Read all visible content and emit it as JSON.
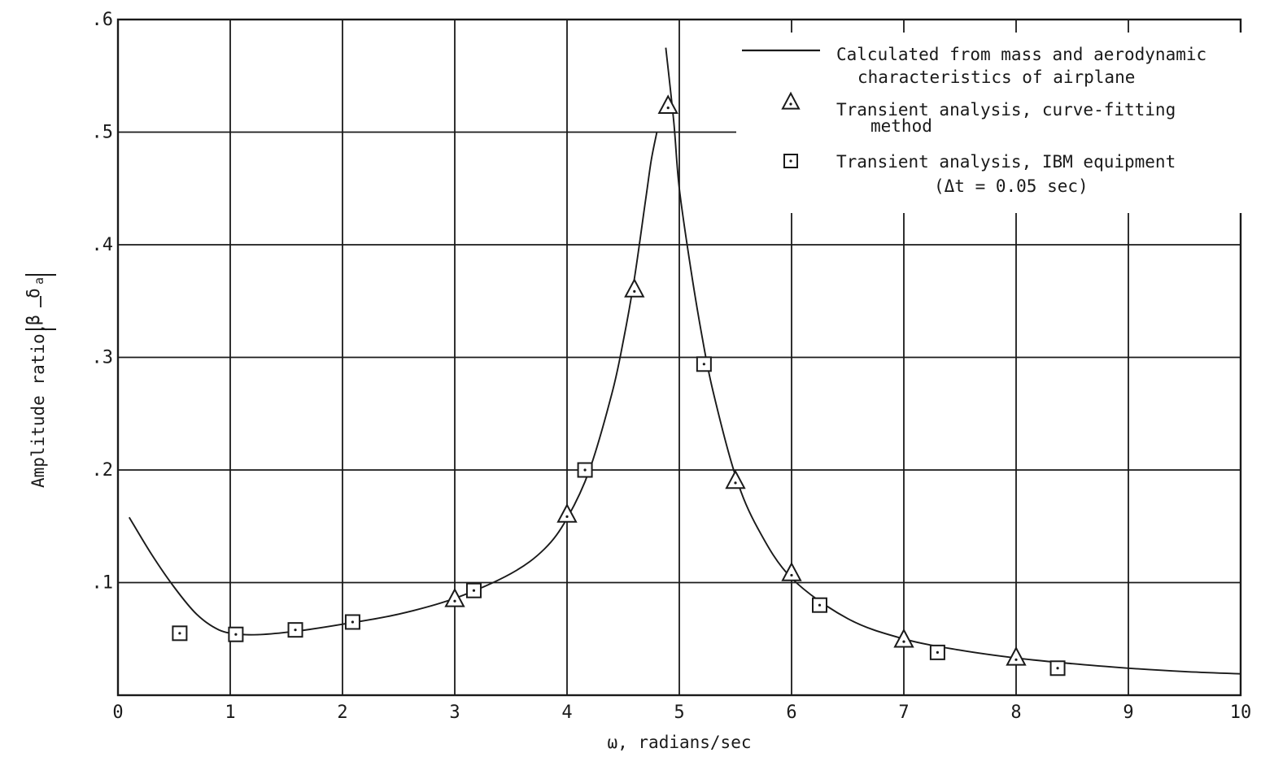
{
  "chart_data": {
    "type": "line",
    "title": "",
    "xlabel": "ω, radians/sec",
    "ylabel": "Amplitude ratio,",
    "ylabel_ratio": {
      "numerator": "β",
      "denominator": "δ",
      "denominator_subscript": "a"
    },
    "xlim": [
      0,
      10
    ],
    "ylim": [
      0,
      0.6
    ],
    "x_ticks": [
      "0",
      "1",
      "2",
      "3",
      "4",
      "5",
      "6",
      "7",
      "8",
      "9",
      "10"
    ],
    "y_ticks": [
      ".1",
      ".2",
      ".3",
      ".4",
      ".5",
      ".6"
    ],
    "grid": true,
    "legend_position": "top-right",
    "series": [
      {
        "name": "Calculated from mass and aerodynamic characteristics of airplane",
        "marker": "line",
        "x": [
          0.1,
          0.3,
          0.5,
          0.7,
          0.9,
          1.1,
          1.3,
          1.6,
          2.0,
          2.5,
          3.0,
          3.5,
          3.8,
          4.0,
          4.2,
          4.4,
          4.5,
          4.6,
          4.7,
          4.75,
          4.8
        ],
        "y": [
          0.158,
          0.125,
          0.096,
          0.072,
          0.058,
          0.054,
          0.054,
          0.057,
          0.063,
          0.072,
          0.086,
          0.108,
          0.13,
          0.157,
          0.2,
          0.268,
          0.314,
          0.37,
          0.44,
          0.475,
          0.5
        ]
      },
      {
        "name": "",
        "marker": "line",
        "x": [
          4.88,
          4.95,
          5.0,
          5.1,
          5.2,
          5.3,
          5.5,
          5.7,
          6.0,
          6.5,
          7.0,
          7.5,
          8.0,
          8.5,
          9.0,
          9.5,
          10.0
        ],
        "y": [
          0.575,
          0.51,
          0.45,
          0.38,
          0.32,
          0.27,
          0.195,
          0.148,
          0.104,
          0.068,
          0.05,
          0.04,
          0.033,
          0.028,
          0.024,
          0.021,
          0.019
        ]
      },
      {
        "name": "Transient analysis, curve-fitting method",
        "marker": "triangle",
        "x": [
          3.0,
          4.0,
          4.6,
          4.9,
          5.5,
          6.0,
          7.0,
          8.0
        ],
        "y": [
          0.085,
          0.16,
          0.36,
          0.523,
          0.19,
          0.108,
          0.049,
          0.033
        ]
      },
      {
        "name": "Transient analysis, IBM equipment (Δt = 0.05 sec)",
        "marker": "square",
        "x": [
          0.55,
          1.05,
          1.58,
          2.09,
          3.17,
          4.16,
          5.22,
          6.25,
          7.3,
          8.37
        ],
        "y": [
          0.055,
          0.054,
          0.058,
          0.065,
          0.093,
          0.2,
          0.294,
          0.08,
          0.038,
          0.024
        ]
      }
    ]
  }
}
